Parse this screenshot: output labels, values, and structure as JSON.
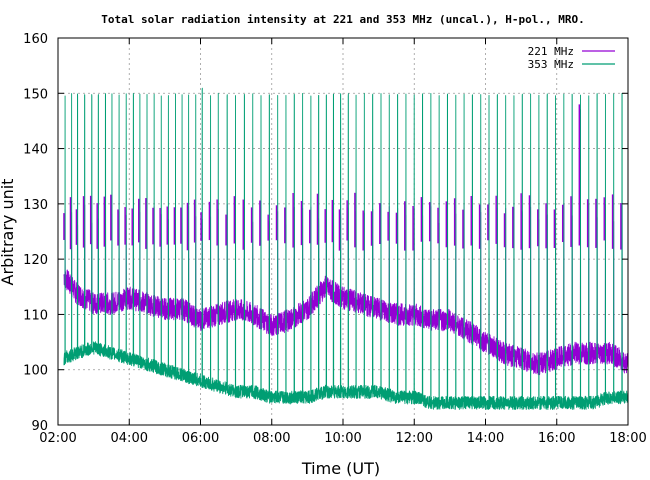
{
  "chart_data": {
    "type": "line",
    "title": "Total solar radiation intensity at 221 and 353 MHz (uncal.), H-pol., MRO.",
    "xlabel": "Time (UT)",
    "ylabel": "Arbitrary unit",
    "xlim": [
      "02:00",
      "18:00"
    ],
    "ylim": [
      90,
      160
    ],
    "x_ticks": [
      "02:00",
      "04:00",
      "06:00",
      "08:00",
      "10:00",
      "12:00",
      "14:00",
      "16:00",
      "18:00"
    ],
    "y_ticks": [
      "90",
      "100",
      "110",
      "120",
      "130",
      "140",
      "150",
      "160"
    ],
    "grid": true,
    "legend_position": "top-right",
    "series": [
      {
        "name": "221 MHz",
        "color": "#9400d3",
        "x": [
          "02:10",
          "02:30",
          "03:00",
          "03:30",
          "04:00",
          "04:30",
          "05:00",
          "05:30",
          "06:00",
          "06:30",
          "07:00",
          "07:30",
          "08:00",
          "08:30",
          "09:00",
          "09:30",
          "10:00",
          "10:30",
          "11:00",
          "11:30",
          "12:00",
          "12:30",
          "13:00",
          "13:30",
          "14:00",
          "14:30",
          "15:00",
          "15:30",
          "16:00",
          "16:30",
          "17:00",
          "17:30",
          "18:00"
        ],
        "values": [
          117,
          114,
          112,
          112,
          113,
          112,
          111,
          111,
          109,
          110,
          111,
          110,
          108,
          109,
          111,
          115,
          113,
          112,
          111,
          110,
          110,
          109,
          109,
          107,
          105,
          103,
          102,
          101,
          102,
          103,
          103,
          103,
          101
        ],
        "spike_peak": 130,
        "outlier_peak": 148,
        "spike_times": [
          "02:12",
          "02:23",
          "02:33",
          "02:45",
          "02:57",
          "03:08",
          "03:20",
          "03:31",
          "03:43",
          "03:55",
          "04:07",
          "04:18",
          "04:30",
          "04:42",
          "04:54",
          "05:06",
          "05:18",
          "05:29",
          "05:40",
          "05:52",
          "06:03",
          "06:17",
          "06:30",
          "06:45",
          "06:59",
          "07:14",
          "07:28",
          "07:42",
          "07:56",
          "08:10",
          "08:24",
          "08:38",
          "08:52",
          "09:06",
          "09:19",
          "09:32",
          "09:44",
          "09:56",
          "10:09",
          "10:22",
          "10:36",
          "10:50",
          "11:04",
          "11:18",
          "11:32",
          "11:46",
          "12:00",
          "12:14",
          "12:28",
          "12:42",
          "12:56",
          "13:10",
          "13:24",
          "13:38",
          "13:52",
          "14:06",
          "14:20",
          "14:34",
          "14:48",
          "15:02",
          "15:16",
          "15:30",
          "15:44",
          "15:58",
          "16:12",
          "16:26",
          "16:40",
          "16:54",
          "17:08",
          "17:22",
          "17:36",
          "17:50"
        ]
      },
      {
        "name": "353 MHz",
        "color": "#009e73",
        "x": [
          "02:10",
          "02:30",
          "03:00",
          "03:30",
          "04:00",
          "04:30",
          "05:00",
          "05:30",
          "06:00",
          "06:30",
          "07:00",
          "07:30",
          "08:00",
          "08:30",
          "09:00",
          "09:30",
          "10:00",
          "10:30",
          "11:00",
          "11:30",
          "12:00",
          "12:30",
          "13:00",
          "13:30",
          "14:00",
          "14:30",
          "15:00",
          "15:30",
          "16:00",
          "16:30",
          "17:00",
          "17:30",
          "18:00"
        ],
        "values": [
          102,
          103,
          104,
          103,
          102,
          101,
          100,
          99,
          98,
          97,
          96,
          96,
          95,
          95,
          95,
          96,
          96,
          96,
          96,
          95,
          95,
          94,
          94,
          94,
          94,
          94,
          94,
          94,
          94,
          94,
          94,
          95,
          95
        ],
        "spike_peak": 150,
        "outlier_peak": 151
      }
    ]
  }
}
